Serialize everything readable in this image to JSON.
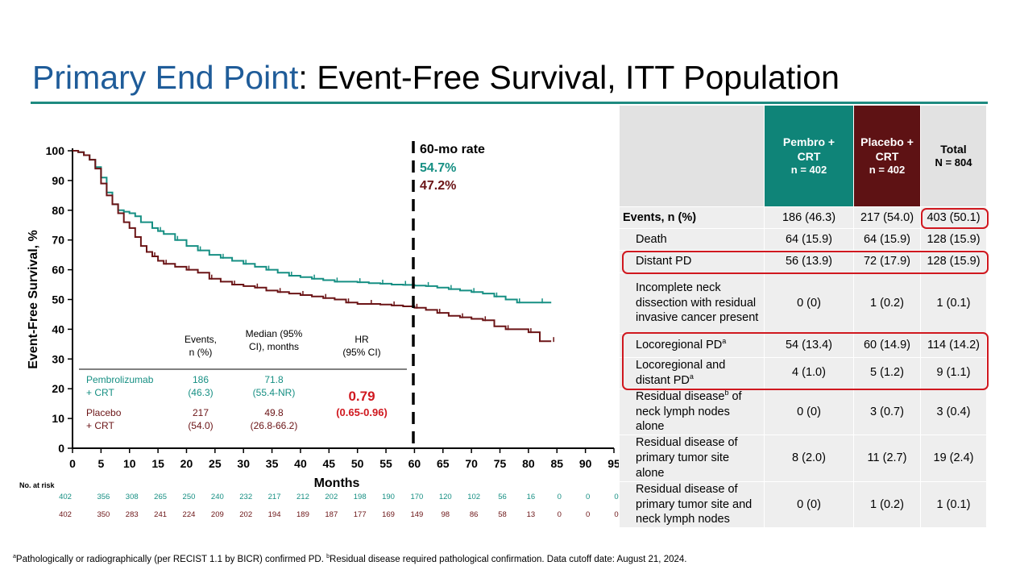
{
  "title": {
    "highlight": "Primary End Point",
    "rest": ": Event-Free Survival, ITT Population"
  },
  "colors": {
    "pembro": "#168f83",
    "placebo": "#6b1416",
    "hr": "#d0181f",
    "title_blue": "#1f5c99"
  },
  "chart_data": {
    "type": "line",
    "xlabel": "Months",
    "ylabel": "Event-Free Survival, %",
    "xlim": [
      0,
      95
    ],
    "ylim": [
      0,
      100
    ],
    "xticks": [
      0,
      5,
      10,
      15,
      20,
      25,
      30,
      35,
      40,
      45,
      50,
      55,
      60,
      65,
      70,
      75,
      80,
      85,
      90,
      95
    ],
    "yticks": [
      0,
      10,
      20,
      30,
      40,
      50,
      60,
      70,
      80,
      90,
      100
    ],
    "reference_line": {
      "x": 60,
      "label": "60-mo rate"
    },
    "series": [
      {
        "name": "Pembrolizumab + CRT",
        "rate_60mo": "54.7%",
        "x": [
          0,
          1,
          2,
          3,
          4,
          5,
          6,
          7,
          8,
          9,
          10,
          11,
          12,
          14,
          15,
          16,
          18,
          20,
          22,
          24,
          26,
          28,
          30,
          32,
          34,
          36,
          38,
          40,
          42,
          44,
          46,
          48,
          50,
          52,
          54,
          56,
          58,
          60,
          62,
          64,
          66,
          68,
          70,
          72,
          74,
          76,
          78,
          80,
          82,
          84
        ],
        "y": [
          100,
          99.5,
          98.5,
          97,
          94.5,
          91,
          86,
          82,
          80,
          79.5,
          79,
          78,
          76,
          74,
          73,
          72,
          70,
          68,
          66.5,
          65,
          64,
          63,
          62,
          61,
          60,
          59,
          58,
          57.5,
          57,
          56.5,
          56,
          56,
          55.8,
          55.5,
          55.3,
          55,
          54.9,
          54.7,
          54.5,
          54,
          53.5,
          53,
          52.5,
          52,
          51,
          50,
          49,
          49,
          49,
          49
        ]
      },
      {
        "name": "Placebo + CRT",
        "rate_60mo": "47.2%",
        "x": [
          0,
          1,
          2,
          3,
          4,
          5,
          6,
          7,
          8,
          9,
          10,
          11,
          12,
          13,
          14,
          15,
          16,
          18,
          20,
          22,
          24,
          26,
          28,
          30,
          32,
          34,
          36,
          38,
          40,
          42,
          44,
          46,
          48,
          50,
          52,
          54,
          56,
          58,
          60,
          62,
          64,
          66,
          68,
          70,
          72,
          74,
          76,
          78,
          80,
          82,
          84
        ],
        "y": [
          100,
          99.5,
          98.5,
          97,
          94,
          89,
          85,
          82,
          79,
          76,
          74,
          71,
          68,
          66,
          64.5,
          63,
          62,
          61,
          60,
          59,
          57,
          56,
          55,
          54.5,
          54,
          53,
          52.5,
          52,
          51.5,
          51,
          50.5,
          50,
          49,
          48.5,
          48.5,
          48.3,
          48,
          47.7,
          47.2,
          46.5,
          45.5,
          44.5,
          44,
          43.5,
          43,
          41,
          40,
          40,
          39,
          36,
          36
        ]
      }
    ],
    "summary_table": {
      "headers": {
        "events": "Events,\nn (%)",
        "median": "Median (95%\nCI), months",
        "hr": "HR\n(95% CI)"
      },
      "rows": [
        {
          "arm": "Pembrolizumab\n+ CRT",
          "events": "186\n(46.3)",
          "median": "71.8\n(55.4-NR)"
        },
        {
          "arm": "Placebo\n+ CRT",
          "events": "217\n(54.0)",
          "median": "49.8\n(26.8-66.2)"
        }
      ],
      "hr_value": "0.79",
      "hr_ci": "(0.65-0.96)"
    },
    "at_risk": {
      "label": "No. at risk",
      "pembro": [
        "402",
        "356",
        "308",
        "265",
        "250",
        "240",
        "232",
        "217",
        "212",
        "202",
        "198",
        "190",
        "170",
        "120",
        "102",
        "56",
        "16",
        "0",
        "0",
        "0"
      ],
      "placebo": [
        "402",
        "350",
        "283",
        "241",
        "224",
        "209",
        "202",
        "194",
        "189",
        "187",
        "177",
        "169",
        "149",
        "98",
        "86",
        "58",
        "13",
        "0",
        "0",
        "0"
      ]
    }
  },
  "table": {
    "header": {
      "pembro": {
        "line1": "Pembro +",
        "line2": "CRT",
        "n": "n = 402"
      },
      "placebo": {
        "line1": "Placebo +",
        "line2": "CRT",
        "n": "n = 402"
      },
      "total": {
        "line1": "Total",
        "n": "N = 804"
      }
    },
    "rows": [
      {
        "label": "Events, n (%)",
        "pembro": "186 (46.3)",
        "placebo": "217 (54.0)",
        "total": "403 (50.1)"
      },
      {
        "label": "Death",
        "pembro": "64 (15.9)",
        "placebo": "64 (15.9)",
        "total": "128 (15.9)"
      },
      {
        "label": "Distant PD",
        "pembro": "56 (13.9)",
        "placebo": "72 (17.9)",
        "total": "128 (15.9)"
      },
      {
        "label": "Incomplete neck dissection with residual invasive cancer present",
        "pembro": "0 (0)",
        "placebo": "1 (0.2)",
        "total": "1 (0.1)"
      },
      {
        "label": "Locoregional PD",
        "sup": "a",
        "pembro": "54 (13.4)",
        "placebo": "60 (14.9)",
        "total": "114 (14.2)"
      },
      {
        "label": "Locoregional and distant PD",
        "sup": "a",
        "pembro": "4 (1.0)",
        "placebo": "5 (1.2)",
        "total": "9 (1.1)"
      },
      {
        "label_pre": "Residual disease",
        "sup": "b",
        "label_post": " of neck lymph nodes alone",
        "pembro": "0 (0)",
        "placebo": "3 (0.7)",
        "total": "3 (0.4)"
      },
      {
        "label": "Residual disease of primary tumor site alone",
        "pembro": "8 (2.0)",
        "placebo": "11 (2.7)",
        "total": "19 (2.4)"
      },
      {
        "label": "Residual disease of primary tumor site and neck lymph nodes",
        "pembro": "0 (0)",
        "placebo": "1 (0.2)",
        "total": "1 (0.1)"
      }
    ]
  },
  "footnote": {
    "sup_a": "a",
    "part1": "Pathologically or radiographically (per RECIST 1.1 by BICR) confirmed PD. ",
    "sup_b": "b",
    "part2": "Residual disease required pathological confirmation. Data cutoff date: August 21, 2024."
  }
}
